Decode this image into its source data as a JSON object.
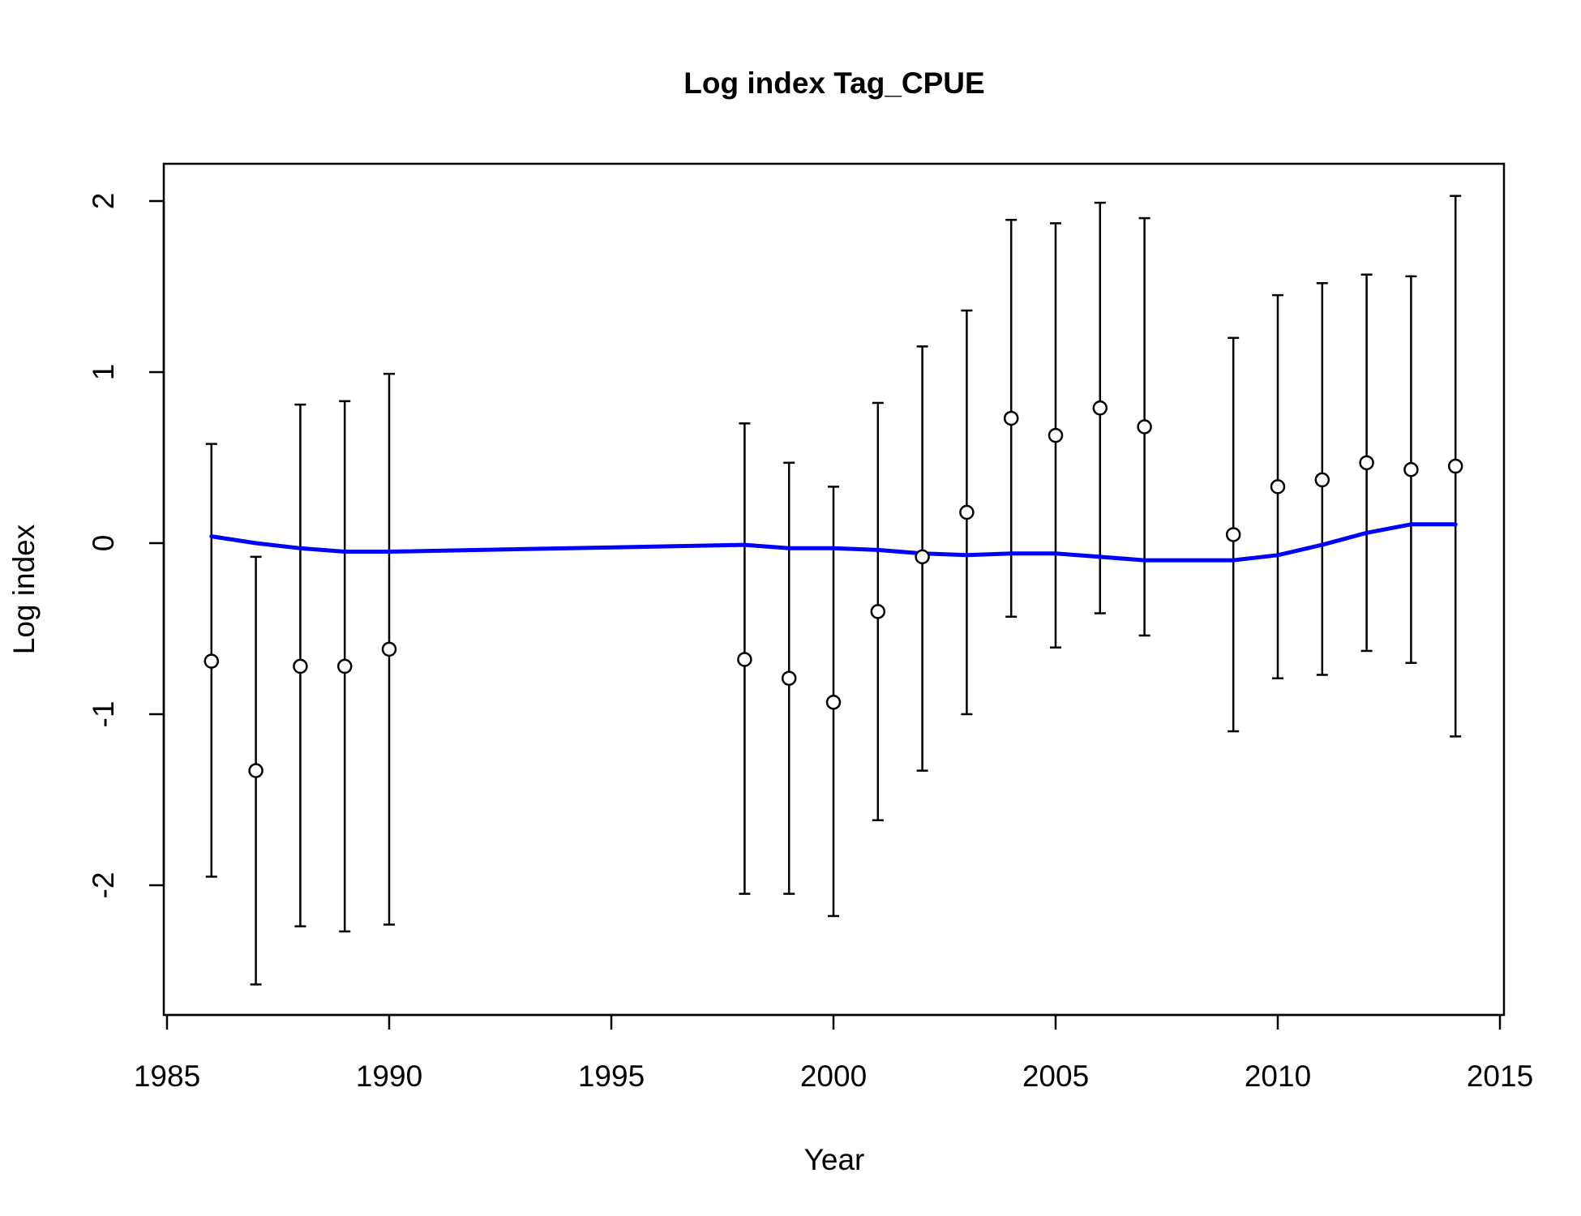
{
  "chart_data": {
    "type": "scatter",
    "title": "Log index Tag_CPUE",
    "xlabel": "Year",
    "ylabel": "Log index",
    "xlim": [
      1985,
      2015
    ],
    "ylim": [
      -2.7,
      2.2
    ],
    "xticks": [
      1985,
      1990,
      1995,
      2000,
      2005,
      2010,
      2015
    ],
    "yticks": [
      -2,
      -1,
      0,
      1,
      2
    ],
    "grid": false,
    "colors": {
      "points": "#000000",
      "errorbars": "#000000",
      "fit_line": "#0000ff"
    },
    "observed": [
      {
        "x": 1986,
        "y": -0.69,
        "lo": -1.95,
        "hi": 0.58
      },
      {
        "x": 1987,
        "y": -1.33,
        "lo": -2.58,
        "hi": -0.08
      },
      {
        "x": 1988,
        "y": -0.72,
        "lo": -2.24,
        "hi": 0.81
      },
      {
        "x": 1989,
        "y": -0.72,
        "lo": -2.27,
        "hi": 0.83
      },
      {
        "x": 1990,
        "y": -0.62,
        "lo": -2.23,
        "hi": 0.99
      },
      {
        "x": 1998,
        "y": -0.68,
        "lo": -2.05,
        "hi": 0.7
      },
      {
        "x": 1999,
        "y": -0.79,
        "lo": -2.05,
        "hi": 0.47
      },
      {
        "x": 2000,
        "y": -0.93,
        "lo": -2.18,
        "hi": 0.33
      },
      {
        "x": 2001,
        "y": -0.4,
        "lo": -1.62,
        "hi": 0.82
      },
      {
        "x": 2002,
        "y": -0.08,
        "lo": -1.33,
        "hi": 1.15
      },
      {
        "x": 2003,
        "y": 0.18,
        "lo": -1.0,
        "hi": 1.36
      },
      {
        "x": 2004,
        "y": 0.73,
        "lo": -0.43,
        "hi": 1.89
      },
      {
        "x": 2005,
        "y": 0.63,
        "lo": -0.61,
        "hi": 1.87
      },
      {
        "x": 2006,
        "y": 0.79,
        "lo": -0.41,
        "hi": 1.99
      },
      {
        "x": 2007,
        "y": 0.68,
        "lo": -0.54,
        "hi": 1.9
      },
      {
        "x": 2009,
        "y": 0.05,
        "lo": -1.1,
        "hi": 1.2
      },
      {
        "x": 2010,
        "y": 0.33,
        "lo": -0.79,
        "hi": 1.45
      },
      {
        "x": 2011,
        "y": 0.37,
        "lo": -0.77,
        "hi": 1.52
      },
      {
        "x": 2012,
        "y": 0.47,
        "lo": -0.63,
        "hi": 1.57
      },
      {
        "x": 2013,
        "y": 0.43,
        "lo": -0.7,
        "hi": 1.56
      },
      {
        "x": 2014,
        "y": 0.45,
        "lo": -1.13,
        "hi": 2.03
      }
    ],
    "expected": {
      "x": [
        1986,
        1987,
        1988,
        1989,
        1990,
        1998,
        1999,
        2000,
        2001,
        2002,
        2003,
        2004,
        2005,
        2006,
        2007,
        2009,
        2010,
        2011,
        2012,
        2013,
        2014
      ],
      "y": [
        0.04,
        0.0,
        -0.03,
        -0.05,
        -0.05,
        -0.01,
        -0.03,
        -0.03,
        -0.04,
        -0.06,
        -0.07,
        -0.06,
        -0.06,
        -0.08,
        -0.1,
        -0.1,
        -0.07,
        -0.01,
        0.06,
        0.11,
        0.11
      ]
    }
  }
}
